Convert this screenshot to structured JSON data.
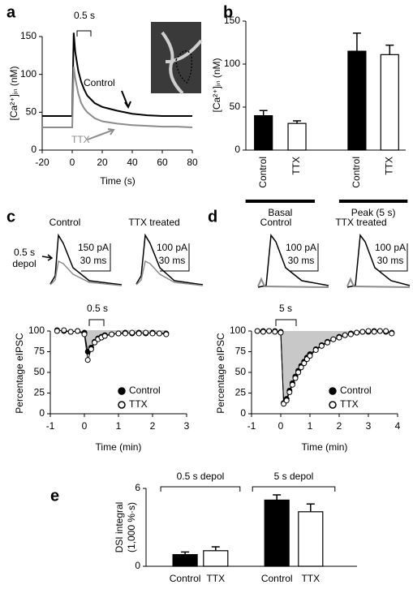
{
  "chart_data": [
    {
      "panel": "a",
      "type": "line",
      "ylabel": "[Ca²⁺]ᵢₙ (nM)",
      "xlabel": "Time (s)",
      "annotations": [
        "0.5 s"
      ],
      "x": [
        -20,
        -10,
        -2,
        0,
        1,
        2,
        4,
        6,
        8,
        10,
        15,
        20,
        30,
        40,
        50,
        60,
        70,
        80
      ],
      "series": [
        {
          "name": "Control",
          "color": "#000000",
          "values": [
            45,
            45,
            45,
            45,
            155,
            130,
            105,
            90,
            80,
            72,
            62,
            57,
            52,
            48,
            46,
            45,
            45,
            45
          ]
        },
        {
          "name": "TTX",
          "color": "#8c8c8c",
          "values": [
            30,
            30,
            30,
            30,
            110,
            95,
            75,
            62,
            55,
            50,
            42,
            38,
            35,
            33,
            32,
            31,
            31,
            30
          ]
        }
      ],
      "xlim": [
        -20,
        80
      ],
      "xticks": [
        -20,
        0,
        20,
        40,
        60,
        80
      ],
      "ylim": [
        0,
        150
      ],
      "yticks": [
        0,
        50,
        100,
        150
      ]
    },
    {
      "panel": "b",
      "type": "bar",
      "ylabel": "[Ca²⁺]ᵢₙ (nM)",
      "categories": [
        "Control",
        "TTX",
        "Control",
        "TTX"
      ],
      "groups": [
        "Basal",
        "Peak (5 s)"
      ],
      "values": [
        40,
        31,
        115,
        111
      ],
      "errors": [
        6,
        3,
        21,
        11
      ],
      "colors": [
        "#000000",
        "#ffffff"
      ],
      "ylim": [
        0,
        150
      ],
      "yticks": [
        0,
        50,
        100,
        150
      ]
    },
    {
      "panel": "c",
      "type": "line",
      "markers": true,
      "ylabel": "Percentage eIPSC",
      "xlabel": "Time (min)",
      "annotations": [
        "0.5 s"
      ],
      "trace_titles": [
        "Control",
        "TTX treated"
      ],
      "trace_labels": [
        "0.5 s",
        "depol",
        "150 pA",
        "30 ms",
        "100 pA",
        "30 ms"
      ],
      "x": [
        -0.8,
        -0.6,
        -0.4,
        -0.2,
        0,
        0.1,
        0.2,
        0.3,
        0.4,
        0.5,
        0.6,
        0.8,
        1.0,
        1.2,
        1.4,
        1.6,
        1.8,
        2.0,
        2.2,
        2.4
      ],
      "series": [
        {
          "name": "Control",
          "color": "#000000",
          "marker": "filled",
          "values": [
            101,
            100,
            99,
            100,
            98,
            75,
            80,
            87,
            91,
            93,
            95,
            96,
            97,
            98,
            97,
            98,
            97,
            98,
            97,
            97
          ]
        },
        {
          "name": "TTX",
          "color": "#000000",
          "marker": "open",
          "values": [
            100,
            101,
            99,
            100,
            96,
            65,
            78,
            86,
            90,
            92,
            94,
            96,
            97,
            97,
            98,
            97,
            98,
            97,
            97,
            96
          ]
        }
      ],
      "xlim": [
        -1,
        3
      ],
      "xticks": [
        -1,
        0,
        1,
        2,
        3
      ],
      "ylim": [
        0,
        100
      ],
      "yticks": [
        0,
        25,
        50,
        75,
        100
      ],
      "legend": "lower right"
    },
    {
      "panel": "d",
      "type": "line",
      "markers": true,
      "ylabel": "Percentage eIPSC",
      "xlabel": "Time (min)",
      "annotations": [
        "5 s"
      ],
      "trace_titles": [
        "Control",
        "TTX treated"
      ],
      "trace_labels": [
        "100 pA",
        "30 ms",
        "100 pA",
        "30 ms"
      ],
      "x": [
        -0.8,
        -0.6,
        -0.4,
        -0.2,
        0,
        0.1,
        0.2,
        0.3,
        0.4,
        0.5,
        0.6,
        0.7,
        0.8,
        0.9,
        1.0,
        1.2,
        1.4,
        1.6,
        1.8,
        2.0,
        2.2,
        2.4,
        2.6,
        2.8,
        3.0,
        3.2,
        3.4,
        3.6,
        3.8
      ],
      "series": [
        {
          "name": "Control",
          "color": "#000000",
          "marker": "filled",
          "values": [
            100,
            100,
            100,
            100,
            99,
            13,
            18,
            28,
            37,
            45,
            52,
            58,
            63,
            68,
            72,
            78,
            83,
            87,
            90,
            93,
            95,
            97,
            98,
            99,
            99,
            100,
            100,
            99,
            98
          ]
        },
        {
          "name": "TTX",
          "color": "#000000",
          "marker": "open",
          "values": [
            100,
            99,
            100,
            99,
            98,
            12,
            16,
            26,
            35,
            43,
            50,
            56,
            61,
            66,
            70,
            77,
            82,
            86,
            90,
            92,
            95,
            96,
            98,
            99,
            100,
            99,
            100,
            100,
            97
          ]
        }
      ],
      "xlim": [
        -1,
        4
      ],
      "xticks": [
        -1,
        0,
        1,
        2,
        3,
        4
      ],
      "ylim": [
        0,
        100
      ],
      "yticks": [
        0,
        25,
        50,
        75,
        100
      ],
      "legend": "lower right"
    },
    {
      "panel": "e",
      "type": "bar",
      "ylabel": [
        "DSI integral",
        "(1,000 %·s)"
      ],
      "categories": [
        "Control",
        "TTX",
        "Control",
        "TTX"
      ],
      "groups": [
        "0.5 s depol",
        "5 s depol"
      ],
      "values": [
        0.9,
        1.2,
        5.1,
        4.2
      ],
      "errors": [
        0.2,
        0.3,
        0.4,
        0.6
      ],
      "colors": [
        "#000000",
        "#ffffff"
      ],
      "ylim": [
        0,
        6
      ],
      "yticks": [
        0,
        6
      ]
    }
  ]
}
